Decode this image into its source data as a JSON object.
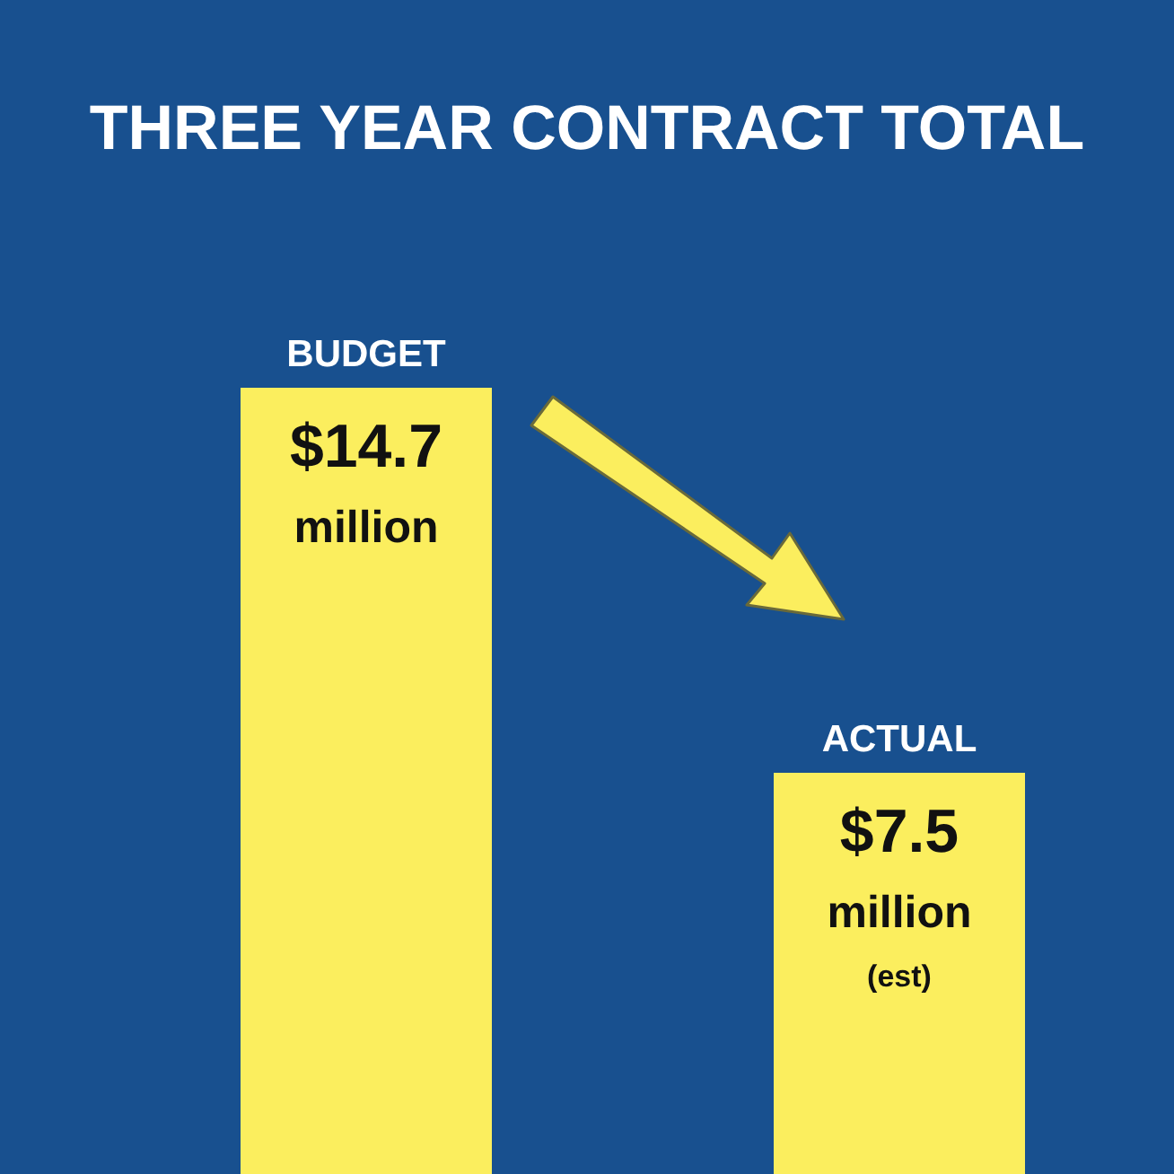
{
  "chart_data": {
    "type": "bar",
    "title": "THREE YEAR CONTRACT TOTAL",
    "categories": [
      "BUDGET",
      "ACTUAL"
    ],
    "values": [
      14.7,
      7.5
    ],
    "color": "#fbee5e",
    "value_labels": [
      "$14.7 million",
      "$7.5 million (est)"
    ]
  }
}
